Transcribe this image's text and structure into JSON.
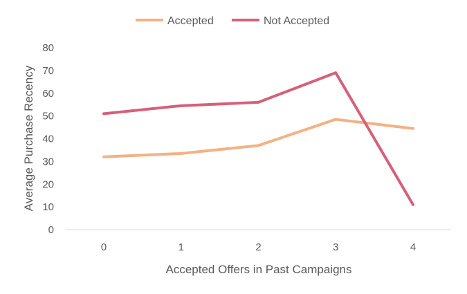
{
  "chart_data": {
    "type": "line",
    "title": "",
    "xlabel": "Accepted Offers in Past Campaigns",
    "ylabel": "Average Purchase Recency",
    "categories": [
      "0",
      "1",
      "2",
      "3",
      "4"
    ],
    "ylim": [
      0,
      80
    ],
    "yticks": [
      "0",
      "10",
      "20",
      "30",
      "40",
      "50",
      "60",
      "70",
      "80"
    ],
    "grid": false,
    "legend_position": "top",
    "series": [
      {
        "name": "Accepted",
        "color": "#F4B183",
        "values": [
          32,
          33.5,
          37,
          48.5,
          44.5
        ]
      },
      {
        "name": "Not Accepted",
        "color": "#D6607A",
        "values": [
          51,
          54.5,
          56,
          69,
          11
        ]
      }
    ]
  }
}
